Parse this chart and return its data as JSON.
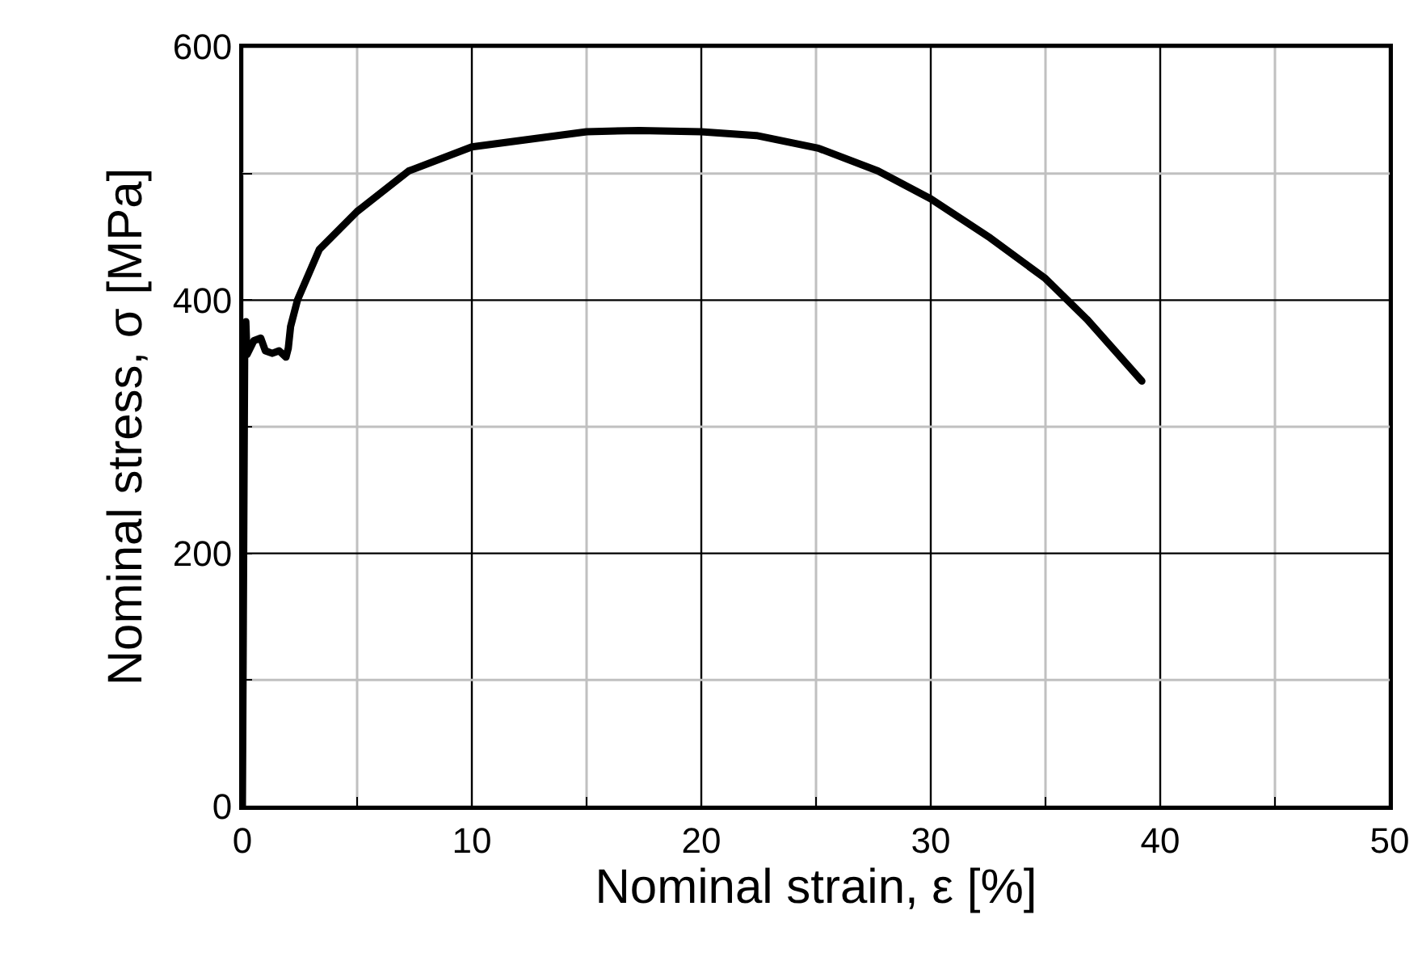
{
  "chart_data": {
    "type": "line",
    "xlabel": "Nominal strain, ε [%]",
    "ylabel": "Nominal stress, σ [MPa]",
    "x": [
      0,
      0.1,
      0.15,
      0.2,
      0.5,
      0.8,
      1.0,
      1.3,
      1.6,
      1.9,
      2.0,
      2.1,
      2.4,
      3.35,
      5.0,
      7.25,
      10,
      15,
      17.3,
      20,
      22.4,
      25.1,
      27.7,
      30,
      32.6,
      35,
      36.8,
      39.2
    ],
    "series": [
      {
        "color": "#000000",
        "values": [
          0,
          360,
          383,
          357,
          368,
          370,
          360,
          358,
          360,
          355,
          362,
          379,
          400,
          440,
          470,
          502,
          521,
          533,
          534,
          533,
          530,
          520,
          502,
          480,
          449,
          417,
          385,
          336
        ]
      }
    ],
    "xlim": [
      0,
      50
    ],
    "xticks": [
      0,
      {
        "value": 5,
        "label": null
      },
      10,
      {
        "value": 15,
        "label": null
      },
      20,
      {
        "value": 25,
        "label": null
      },
      30,
      {
        "value": 35,
        "label": null
      },
      40,
      {
        "value": 45,
        "label": null
      },
      50
    ],
    "ylim": [
      0,
      600
    ],
    "yticks": [
      0,
      {
        "value": 100,
        "label": null
      },
      200,
      {
        "value": 300,
        "label": null
      },
      400,
      {
        "value": 500,
        "label": null
      },
      600
    ],
    "grid": true,
    "marker": "none",
    "line_style": "solid"
  }
}
